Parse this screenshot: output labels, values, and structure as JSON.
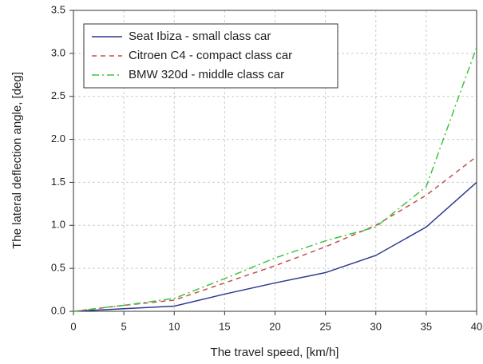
{
  "chart_data": {
    "type": "line",
    "x_label": "The travel speed, [km/h]",
    "y_label": "The lateral deflection angle, [deg]",
    "x": [
      0,
      5,
      10,
      15,
      20,
      25,
      30,
      35,
      40
    ],
    "series": [
      {
        "name": "Seat Ibiza - small class car",
        "color": "#2b3a8f",
        "dash": "none",
        "values": [
          0,
          0.03,
          0.06,
          0.2,
          0.33,
          0.45,
          0.65,
          0.98,
          1.5
        ]
      },
      {
        "name": "Citroen C4 - compact class car",
        "color": "#c0504d",
        "dash": "6 5",
        "values": [
          0,
          0.07,
          0.13,
          0.33,
          0.53,
          0.75,
          1.0,
          1.35,
          1.8
        ]
      },
      {
        "name": "BMW 320d - middle class car",
        "color": "#3ec43e",
        "dash": "9 4 2 4",
        "values": [
          0,
          0.07,
          0.15,
          0.38,
          0.62,
          0.82,
          0.98,
          1.45,
          3.07
        ]
      }
    ],
    "xlim": [
      0,
      40
    ],
    "xticks": [
      0,
      5,
      10,
      15,
      20,
      25,
      30,
      35,
      40
    ],
    "ylim": [
      0,
      3.5
    ],
    "yticks": [
      {
        "value": 0,
        "label": "0.0"
      },
      0.5,
      {
        "value": 1,
        "label": "1.0"
      },
      1.5,
      {
        "value": 2,
        "label": "2.0"
      },
      2.5,
      {
        "value": 3,
        "label": "3.0"
      },
      3.5
    ],
    "grid": true,
    "legend": "upper left"
  }
}
